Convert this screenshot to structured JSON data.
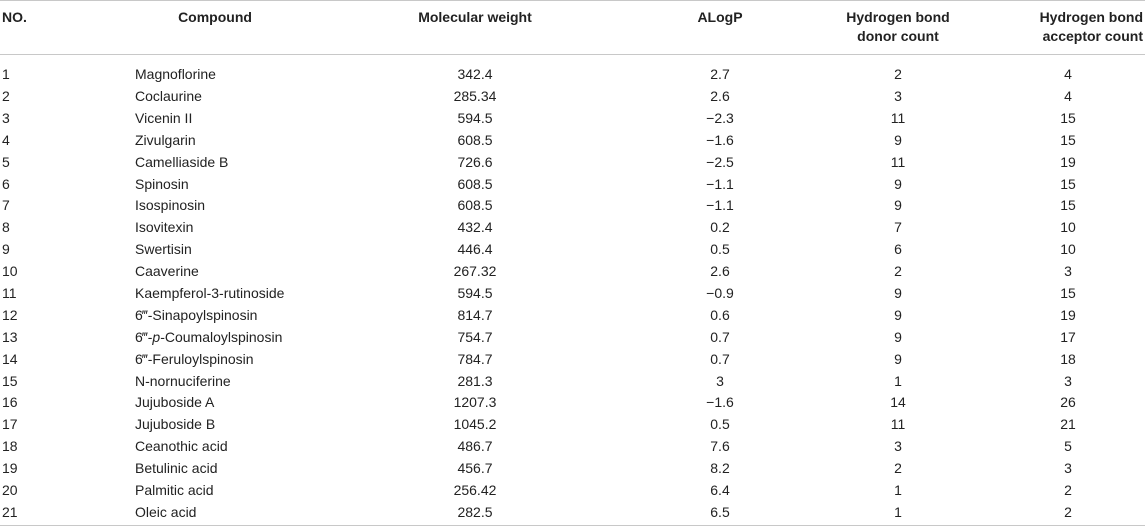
{
  "table": {
    "headers": {
      "no": "NO.",
      "compound": "Compound",
      "mw": "Molecular weight",
      "alogp": "ALogP",
      "hbd_line1": "Hydrogen bond",
      "hbd_line2": "donor count",
      "hba_line1": "Hydrogen bond",
      "hba_line2": "acceptor count"
    },
    "rows": [
      {
        "no": "1",
        "compound": "Magnoflorine",
        "mw": "342.4",
        "alogp": "2.7",
        "hbd": "2",
        "hba": "4"
      },
      {
        "no": "2",
        "compound": "Coclaurine",
        "mw": "285.34",
        "alogp": "2.6",
        "hbd": "3",
        "hba": "4"
      },
      {
        "no": "3",
        "compound": "Vicenin II",
        "mw": "594.5",
        "alogp": "−2.3",
        "hbd": "11",
        "hba": "15"
      },
      {
        "no": "4",
        "compound": "Zivulgarin",
        "mw": "608.5",
        "alogp": "−1.6",
        "hbd": "9",
        "hba": "15"
      },
      {
        "no": "5",
        "compound": "Camelliaside B",
        "mw": "726.6",
        "alogp": "−2.5",
        "hbd": "11",
        "hba": "19"
      },
      {
        "no": "6",
        "compound": "Spinosin",
        "mw": "608.5",
        "alogp": "−1.1",
        "hbd": "9",
        "hba": "15"
      },
      {
        "no": "7",
        "compound": "Isospinosin",
        "mw": "608.5",
        "alogp": "−1.1",
        "hbd": "9",
        "hba": "15"
      },
      {
        "no": "8",
        "compound": "Isovitexin",
        "mw": "432.4",
        "alogp": "0.2",
        "hbd": "7",
        "hba": "10"
      },
      {
        "no": "9",
        "compound": "Swertisin",
        "mw": "446.4",
        "alogp": "0.5",
        "hbd": "6",
        "hba": "10"
      },
      {
        "no": "10",
        "compound": "Caaverine",
        "mw": "267.32",
        "alogp": "2.6",
        "hbd": "2",
        "hba": "3"
      },
      {
        "no": "11",
        "compound": "Kaempferol-3-rutinoside",
        "mw": "594.5",
        "alogp": "−0.9",
        "hbd": "9",
        "hba": "15"
      },
      {
        "no": "12",
        "compound": "6‴-Sinapoylspinosin",
        "mw": "814.7",
        "alogp": "0.6",
        "hbd": "9",
        "hba": "19"
      },
      {
        "no": "13",
        "compound_pre": "6‴-",
        "compound_em": "p",
        "compound_post": "-Coumaloylspinosin",
        "mw": "754.7",
        "alogp": "0.7",
        "hbd": "9",
        "hba": "17"
      },
      {
        "no": "14",
        "compound": "6‴-Feruloylspinosin",
        "mw": "784.7",
        "alogp": "0.7",
        "hbd": "9",
        "hba": "18"
      },
      {
        "no": "15",
        "compound": "N-nornuciferine",
        "mw": "281.3",
        "alogp": "3",
        "hbd": "1",
        "hba": "3"
      },
      {
        "no": "16",
        "compound": "Jujuboside A",
        "mw": "1207.3",
        "alogp": "−1.6",
        "hbd": "14",
        "hba": "26"
      },
      {
        "no": "17",
        "compound": "Jujuboside B",
        "mw": "1045.2",
        "alogp": "0.5",
        "hbd": "11",
        "hba": "21"
      },
      {
        "no": "18",
        "compound": "Ceanothic acid",
        "mw": "486.7",
        "alogp": "7.6",
        "hbd": "3",
        "hba": "5"
      },
      {
        "no": "19",
        "compound": "Betulinic acid",
        "mw": "456.7",
        "alogp": "8.2",
        "hbd": "2",
        "hba": "3"
      },
      {
        "no": "20",
        "compound": "Palmitic acid",
        "mw": "256.42",
        "alogp": "6.4",
        "hbd": "1",
        "hba": "2"
      },
      {
        "no": "21",
        "compound": "Oleic acid",
        "mw": "282.5",
        "alogp": "6.5",
        "hbd": "1",
        "hba": "2"
      }
    ]
  }
}
